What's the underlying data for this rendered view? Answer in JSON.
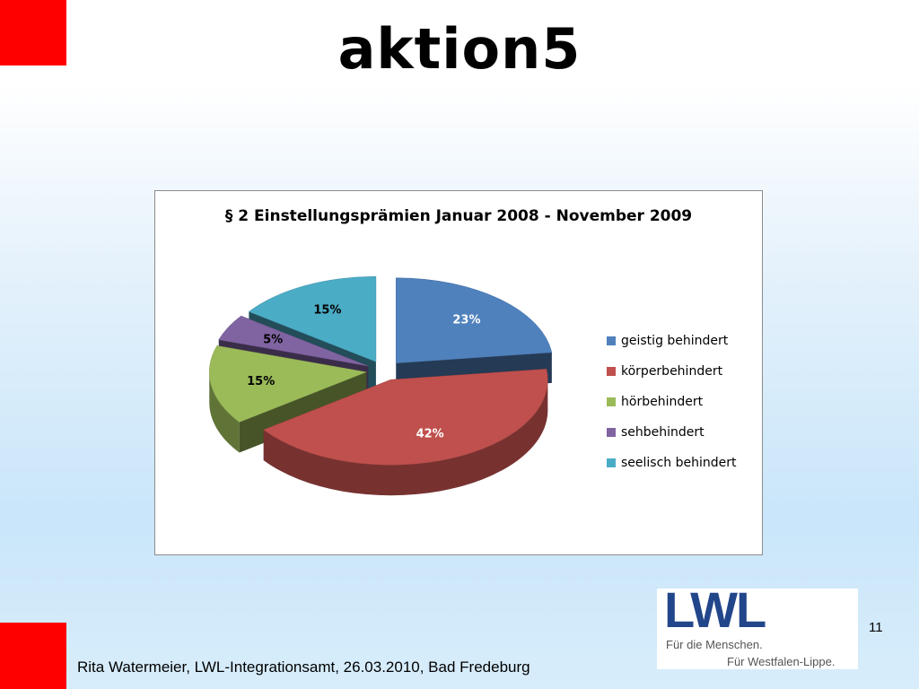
{
  "slide": {
    "title": "aktion5",
    "page_number": "11",
    "footer": "Rita Watermeier, LWL-Integrationsamt, 26.03.2010, Bad Fredeburg",
    "logo": {
      "text": "LWL",
      "tagline1": "Für die Menschen.",
      "tagline2": "Für Westfalen-Lippe."
    },
    "colors": {
      "corner_boxes": "#ff0000",
      "logo_blue": "#22468a"
    }
  },
  "chart_data": {
    "type": "pie",
    "title": "§ 2 Einstellungsprämien  Januar 2008 - November 2009",
    "style": "3d-exploded",
    "legend_placement": "right",
    "categories": [
      "geistig behindert",
      "körperbehindert",
      "hörbehindert",
      "sehbehindert",
      "seelisch behindert"
    ],
    "values": [
      23,
      42,
      15,
      5,
      15
    ],
    "labels": [
      "23%",
      "42%",
      "15%",
      "5%",
      "15%"
    ],
    "colors": [
      "#4f81bd",
      "#c0504d",
      "#9bbb59",
      "#8064a2",
      "#4bacc6"
    ],
    "label_colors": [
      "#ffffff",
      "#ffffff",
      "#000000",
      "#000000",
      "#000000"
    ]
  }
}
